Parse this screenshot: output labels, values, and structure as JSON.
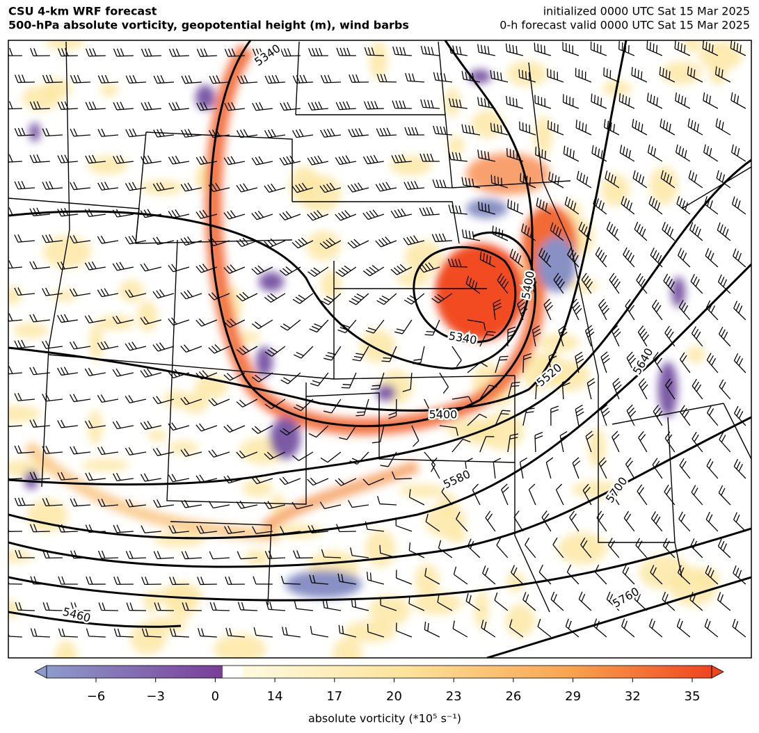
{
  "header": {
    "title": "CSU 4-km WRF forecast",
    "subtitle": "500-hPa absolute vorticity, geopotential height (m), wind barbs",
    "initialized": "initialized 0000 UTC Sat 15 Mar 2025",
    "valid": "0-h forecast valid 0000 UTC Sat 15 Mar 2025"
  },
  "map": {
    "contour_labels": [
      5340,
      5400,
      5340,
      5520,
      5400,
      5580,
      5640,
      5700,
      5460,
      5760
    ]
  },
  "colorbar": {
    "label": "absolute vorticity (*10⁵ s⁻¹)",
    "ticks": [
      {
        "value": -6,
        "label": "−6"
      },
      {
        "value": -3,
        "label": "−3"
      },
      0,
      14,
      17,
      20,
      23,
      26,
      29,
      32,
      35
    ]
  }
}
